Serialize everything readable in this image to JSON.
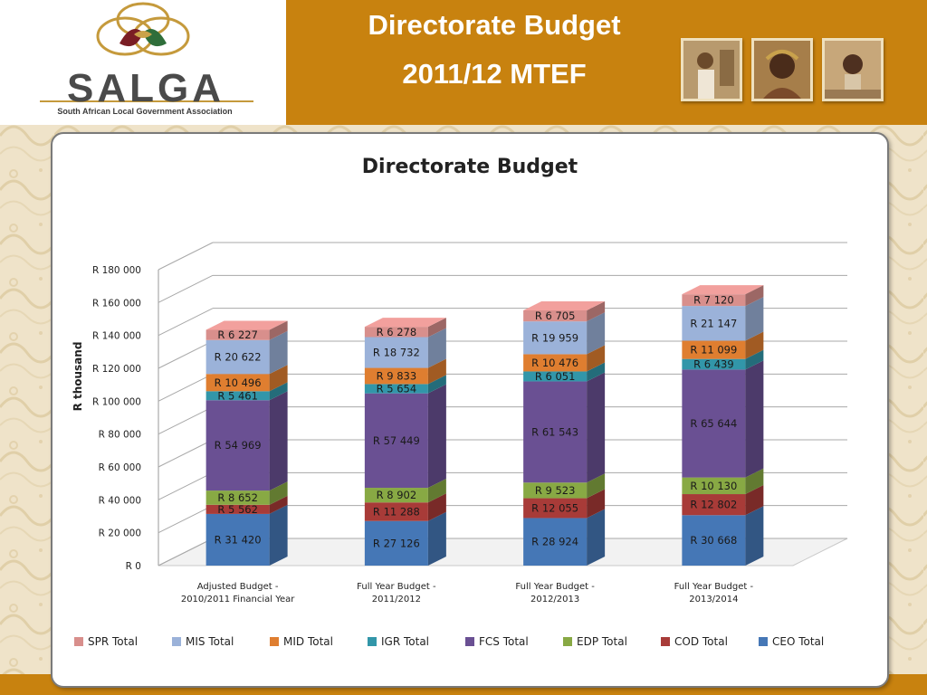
{
  "header": {
    "logo_text": "SALGA",
    "logo_subtitle": "South African Local Government Association",
    "title_line1": "Directorate Budget",
    "title_line2": "2011/12 MTEF",
    "photos": [
      "photo-1",
      "photo-2",
      "photo-3"
    ]
  },
  "colors": {
    "banner": "#c8820f",
    "CEO": "#4577b6",
    "COD": "#a83b38",
    "EDP": "#88a944",
    "FCS": "#6a5093",
    "IGR": "#3296a9",
    "MID": "#df7e30",
    "MIS": "#9bb2d9",
    "SPR": "#d88f8c"
  },
  "chart_data": {
    "type": "bar",
    "stacked": true,
    "three_d": true,
    "title": "Directorate Budget",
    "ylabel": "R thousand",
    "ylim": [
      0,
      180000
    ],
    "yticks": [
      "R 0",
      "R 20 000",
      "R 40 000",
      "R 60 000",
      "R 80 000",
      "R 100 000",
      "R 120 000",
      "R 140 000",
      "R 160 000",
      "R 180 000"
    ],
    "grid": true,
    "legend_position": "bottom",
    "categories": [
      [
        "Adjusted Budget -",
        "2010/2011 Financial Year"
      ],
      [
        "Full Year Budget -",
        "2011/2012"
      ],
      [
        "Full Year Budget -",
        "2012/2013"
      ],
      [
        "Full Year Budget -",
        "2013/2014"
      ]
    ],
    "series": [
      {
        "name": "CEO Total",
        "key": "CEO",
        "values": [
          31420,
          27126,
          28924,
          30668
        ],
        "labels": [
          "R 31 420",
          "R 27 126",
          "R 28 924",
          "R 30 668"
        ]
      },
      {
        "name": "COD Total",
        "key": "COD",
        "values": [
          5562,
          11288,
          12055,
          12802
        ],
        "labels": [
          "R 5 562",
          "R 11 288",
          "R 12 055",
          "R 12 802"
        ]
      },
      {
        "name": "EDP Total",
        "key": "EDP",
        "values": [
          8652,
          8902,
          9523,
          10130
        ],
        "labels": [
          "R 8 652",
          "R 8 902",
          "R 9 523",
          "R 10 130"
        ]
      },
      {
        "name": "FCS Total",
        "key": "FCS",
        "values": [
          54969,
          57449,
          61543,
          65644
        ],
        "labels": [
          "R 54 969",
          "R 57 449",
          "R 61 543",
          "R 65 644"
        ]
      },
      {
        "name": "IGR Total",
        "key": "IGR",
        "values": [
          5461,
          5654,
          6051,
          6439
        ],
        "labels": [
          "R 5 461",
          "R 5 654",
          "R 6 051",
          "R 6 439"
        ]
      },
      {
        "name": "MID Total",
        "key": "MID",
        "values": [
          10496,
          9833,
          10476,
          11099
        ],
        "labels": [
          "R 10 496",
          "R 9 833",
          "R 10 476",
          "R 11 099"
        ]
      },
      {
        "name": "MIS Total",
        "key": "MIS",
        "values": [
          20622,
          18732,
          19959,
          21147
        ],
        "labels": [
          "R 20 622",
          "R 18 732",
          "R 19 959",
          "R 21 147"
        ]
      },
      {
        "name": "SPR Total",
        "key": "SPR",
        "values": [
          6227,
          6278,
          6705,
          7120
        ],
        "labels": [
          "R 6 227",
          "R 6 278",
          "R 6 705",
          "R 7 120"
        ]
      }
    ],
    "legend_order": [
      "SPR",
      "MIS",
      "MID",
      "IGR",
      "FCS",
      "EDP",
      "COD",
      "CEO"
    ]
  }
}
